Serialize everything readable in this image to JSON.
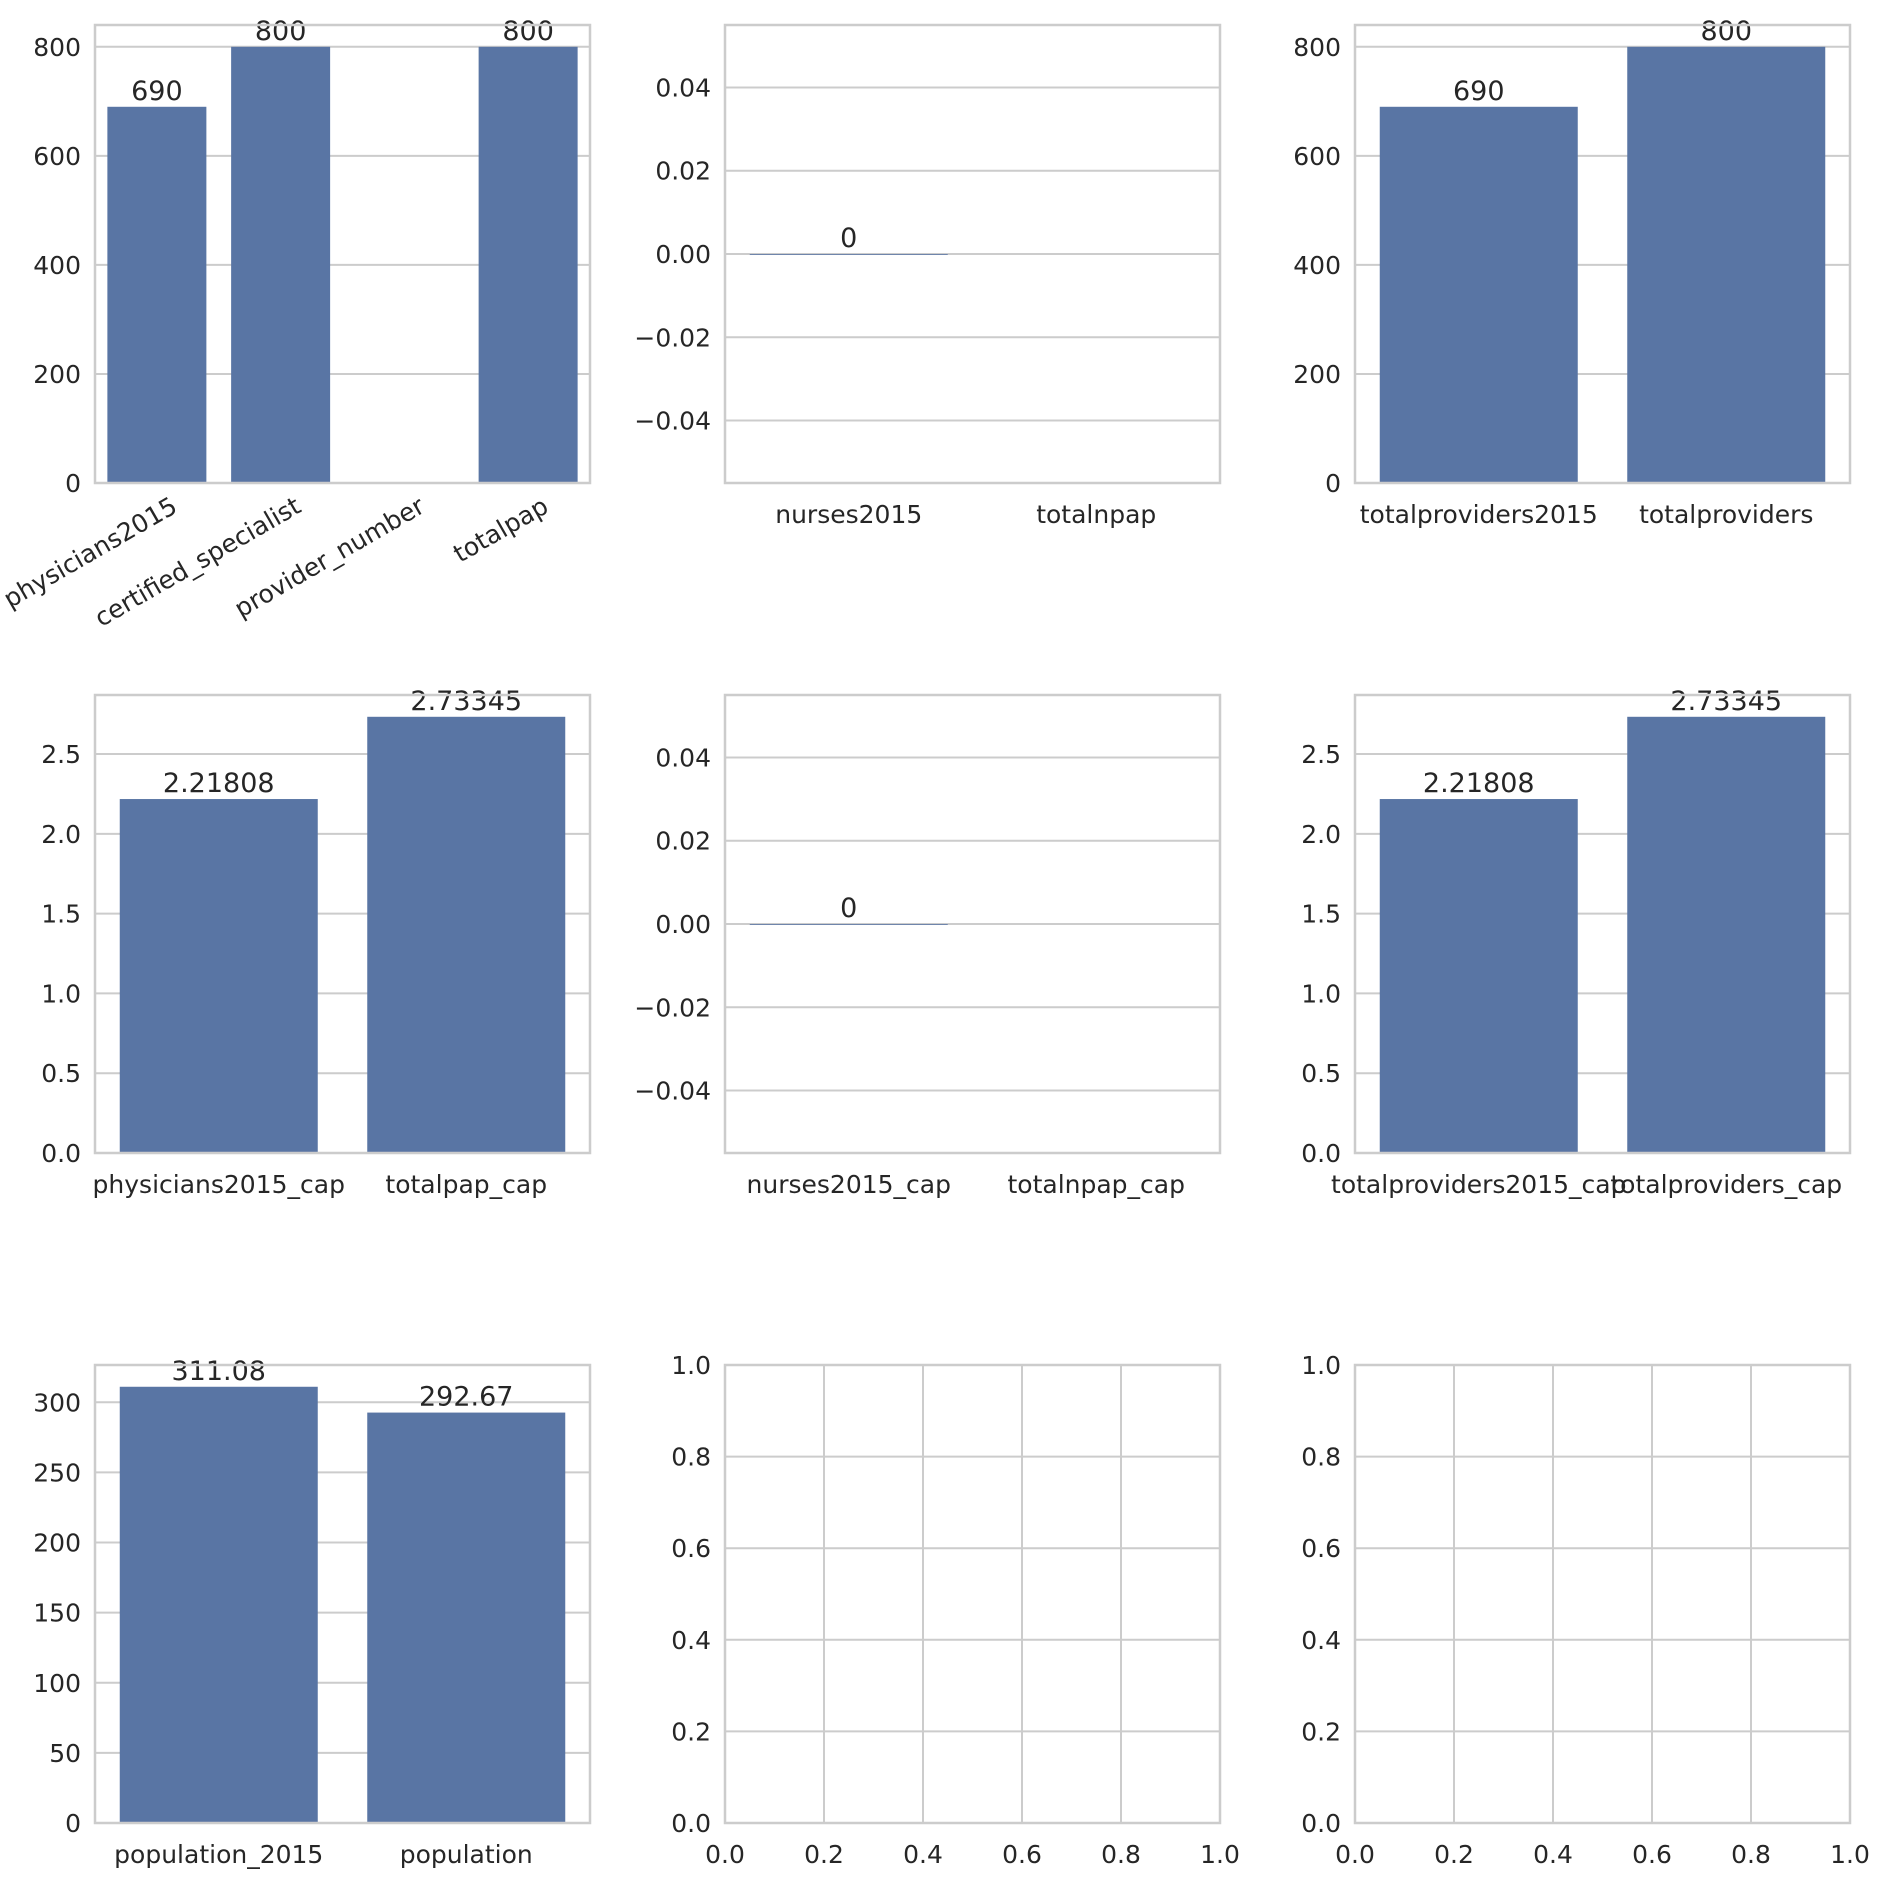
{
  "colors": {
    "bar": "#5975a4",
    "grid": "#cccccc",
    "text": "#262626",
    "background": "#ffffff"
  },
  "chart_data": [
    {
      "type": "bar",
      "categories": [
        "physicians2015",
        "certified_specialist",
        "provider_number",
        "totalpap"
      ],
      "values": [
        690,
        800,
        null,
        800
      ],
      "data_labels": [
        "690",
        "800",
        "",
        "800"
      ],
      "ylim": [
        0,
        840
      ],
      "yticks": [
        0,
        200,
        400,
        600,
        800
      ],
      "ytick_labels": [
        "0",
        "200",
        "400",
        "600",
        "800"
      ],
      "xtick_rotation": 30,
      "grid": "horizontal",
      "title": "",
      "xlabel": "",
      "ylabel": ""
    },
    {
      "type": "bar",
      "categories": [
        "nurses2015",
        "totalnpap"
      ],
      "values": [
        0,
        null
      ],
      "data_labels": [
        "0",
        ""
      ],
      "ylim": [
        -0.055,
        0.055
      ],
      "yticks": [
        -0.04,
        -0.02,
        0,
        0.02,
        0.04
      ],
      "ytick_labels": [
        "−0.04",
        "−0.02",
        "0.00",
        "0.02",
        "0.04"
      ],
      "grid": "horizontal",
      "title": "",
      "xlabel": "",
      "ylabel": ""
    },
    {
      "type": "bar",
      "categories": [
        "totalproviders2015",
        "totalproviders"
      ],
      "values": [
        690,
        800
      ],
      "data_labels": [
        "690",
        "800"
      ],
      "ylim": [
        0,
        840
      ],
      "yticks": [
        0,
        200,
        400,
        600,
        800
      ],
      "ytick_labels": [
        "0",
        "200",
        "400",
        "600",
        "800"
      ],
      "grid": "horizontal",
      "title": "",
      "xlabel": "",
      "ylabel": ""
    },
    {
      "type": "bar",
      "categories": [
        "physicians2015_cap",
        "totalpap_cap"
      ],
      "values": [
        2.21808,
        2.73345
      ],
      "data_labels": [
        "2.21808",
        "2.73345"
      ],
      "ylim": [
        0,
        2.87
      ],
      "yticks": [
        0,
        0.5,
        1.0,
        1.5,
        2.0,
        2.5
      ],
      "ytick_labels": [
        "0.0",
        "0.5",
        "1.0",
        "1.5",
        "2.0",
        "2.5"
      ],
      "grid": "horizontal",
      "title": "",
      "xlabel": "",
      "ylabel": ""
    },
    {
      "type": "bar",
      "categories": [
        "nurses2015_cap",
        "totalnpap_cap"
      ],
      "values": [
        0,
        null
      ],
      "data_labels": [
        "0",
        ""
      ],
      "ylim": [
        -0.055,
        0.055
      ],
      "yticks": [
        -0.04,
        -0.02,
        0,
        0.02,
        0.04
      ],
      "ytick_labels": [
        "−0.04",
        "−0.02",
        "0.00",
        "0.02",
        "0.04"
      ],
      "grid": "horizontal",
      "title": "",
      "xlabel": "",
      "ylabel": ""
    },
    {
      "type": "bar",
      "categories": [
        "totalproviders2015_cap",
        "totalproviders_cap"
      ],
      "values": [
        2.21808,
        2.73345
      ],
      "data_labels": [
        "2.21808",
        "2.73345"
      ],
      "ylim": [
        0,
        2.87
      ],
      "yticks": [
        0,
        0.5,
        1.0,
        1.5,
        2.0,
        2.5
      ],
      "ytick_labels": [
        "0.0",
        "0.5",
        "1.0",
        "1.5",
        "2.0",
        "2.5"
      ],
      "grid": "horizontal",
      "title": "",
      "xlabel": "",
      "ylabel": ""
    },
    {
      "type": "bar",
      "categories": [
        "population_2015",
        "population"
      ],
      "values": [
        311.08,
        292.67
      ],
      "data_labels": [
        "311.08",
        "292.67"
      ],
      "ylim": [
        0,
        326.6
      ],
      "yticks": [
        0,
        50,
        100,
        150,
        200,
        250,
        300
      ],
      "ytick_labels": [
        "0",
        "50",
        "100",
        "150",
        "200",
        "250",
        "300"
      ],
      "grid": "horizontal",
      "title": "",
      "xlabel": "",
      "ylabel": ""
    },
    {
      "type": "empty",
      "xlim": [
        0,
        1
      ],
      "ylim": [
        0,
        1
      ],
      "xticks": [
        0,
        0.2,
        0.4,
        0.6,
        0.8,
        1.0
      ],
      "xtick_labels": [
        "0.0",
        "0.2",
        "0.4",
        "0.6",
        "0.8",
        "1.0"
      ],
      "yticks": [
        0,
        0.2,
        0.4,
        0.6,
        0.8,
        1.0
      ],
      "ytick_labels": [
        "0.0",
        "0.2",
        "0.4",
        "0.6",
        "0.8",
        "1.0"
      ],
      "grid": "both",
      "title": "",
      "xlabel": "",
      "ylabel": ""
    },
    {
      "type": "empty",
      "xlim": [
        0,
        1
      ],
      "ylim": [
        0,
        1
      ],
      "xticks": [
        0,
        0.2,
        0.4,
        0.6,
        0.8,
        1.0
      ],
      "xtick_labels": [
        "0.0",
        "0.2",
        "0.4",
        "0.6",
        "0.8",
        "1.0"
      ],
      "yticks": [
        0,
        0.2,
        0.4,
        0.6,
        0.8,
        1.0
      ],
      "ytick_labels": [
        "0.0",
        "0.2",
        "0.4",
        "0.6",
        "0.8",
        "1.0"
      ],
      "grid": "both",
      "title": "",
      "xlabel": "",
      "ylabel": ""
    }
  ]
}
